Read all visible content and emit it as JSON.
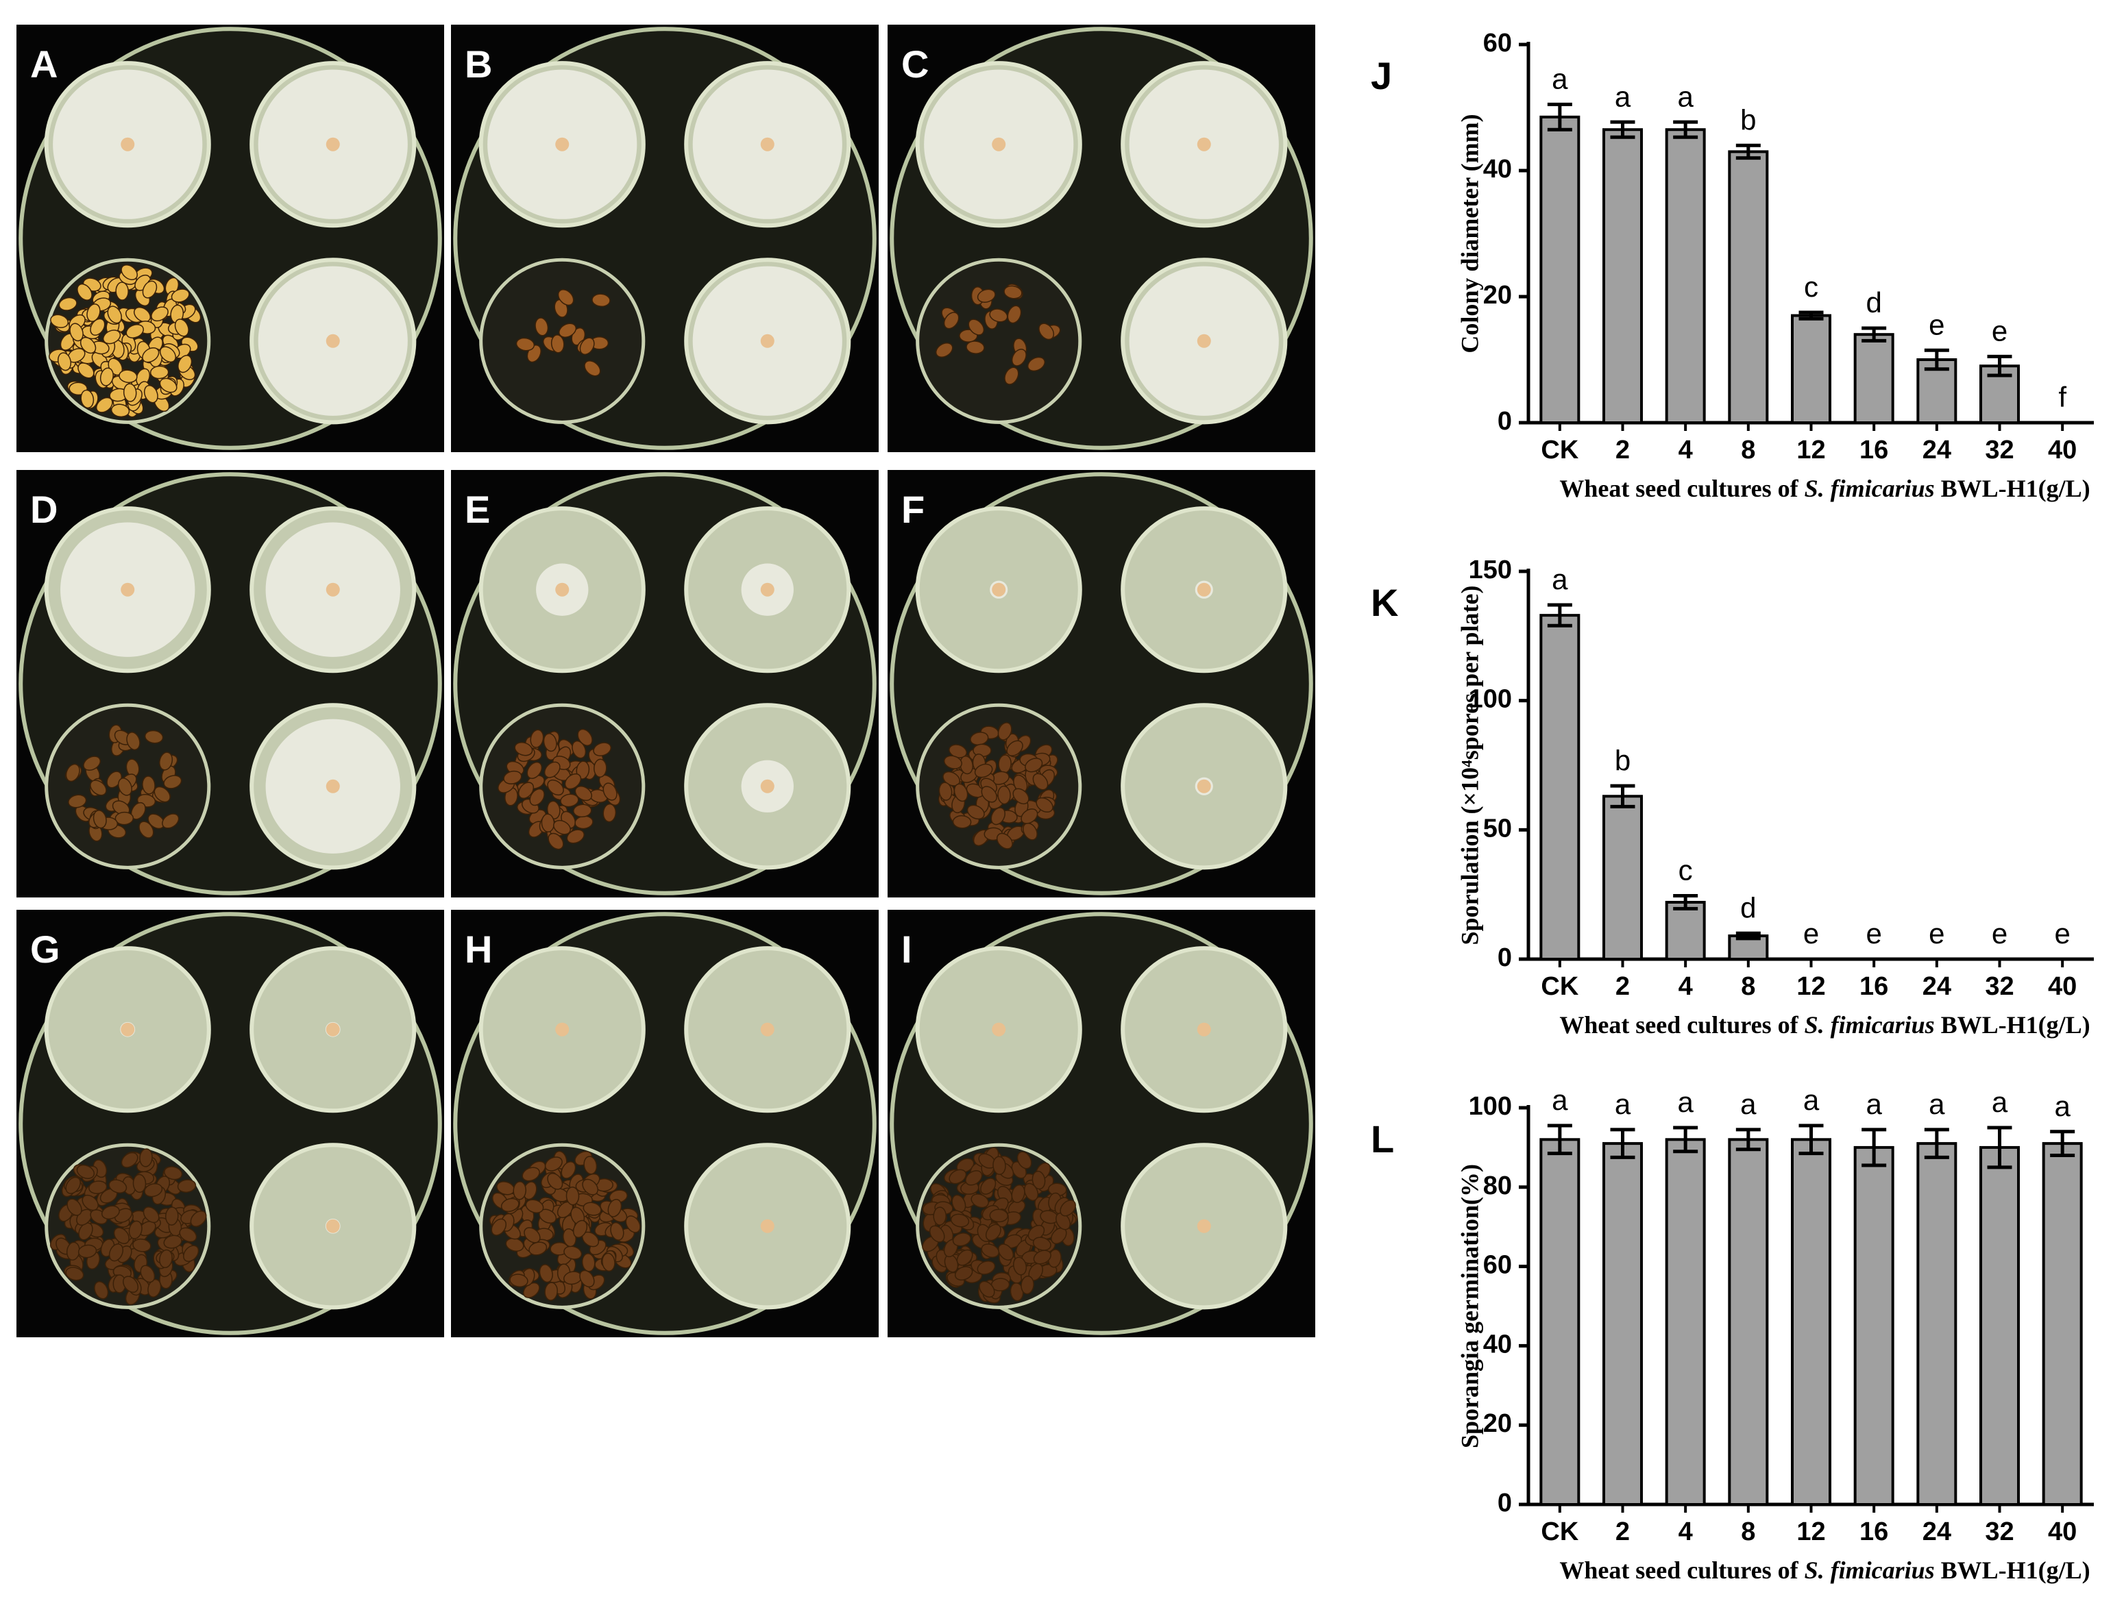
{
  "panels": {
    "labels": [
      "A",
      "B",
      "C",
      "D",
      "E",
      "F",
      "G",
      "H",
      "I"
    ]
  },
  "chart_data": [
    {
      "type": "bar",
      "panel_label": "J",
      "ylabel": "Colony diameter (mm)",
      "xlabel": [
        "Wheat seed cultures of ",
        "S. fimicarius",
        " BWL-H1(g/L)"
      ],
      "categories": [
        "CK",
        "2",
        "4",
        "8",
        "12",
        "16",
        "24",
        "32",
        "40"
      ],
      "values": [
        48.5,
        46.5,
        46.5,
        43,
        17,
        14,
        10,
        9,
        0
      ],
      "errors": [
        2,
        1.2,
        1.2,
        1,
        0.5,
        1,
        1.5,
        1.5,
        0
      ],
      "significance": [
        "a",
        "a",
        "a",
        "b",
        "c",
        "d",
        "e",
        "e",
        "f"
      ],
      "color": "#a0a0a0",
      "ylim": [
        0,
        60
      ],
      "yticks": [
        0,
        20,
        40,
        60
      ]
    },
    {
      "type": "bar",
      "panel_label": "K",
      "ylabel": "Sporulation (×10⁴spores per plate)",
      "xlabel": [
        "Wheat seed cultures of ",
        "S. fimicarius",
        " BWL-H1(g/L)"
      ],
      "categories": [
        "CK",
        "2",
        "4",
        "8",
        "12",
        "16",
        "24",
        "32",
        "40"
      ],
      "values": [
        133,
        63,
        22,
        9,
        0,
        0,
        0,
        0,
        0
      ],
      "errors": [
        4,
        4,
        2.5,
        1,
        0,
        0,
        0,
        0,
        0
      ],
      "significance": [
        "a",
        "b",
        "c",
        "d",
        "e",
        "e",
        "e",
        "e",
        "e"
      ],
      "color": "#a0a0a0",
      "ylim": [
        0,
        150
      ],
      "yticks": [
        0,
        50,
        100,
        150
      ]
    },
    {
      "type": "bar",
      "panel_label": "L",
      "ylabel": "Sporangia germination(%)",
      "xlabel": [
        "Wheat seed cultures of ",
        "S. fimicarius",
        " BWL-H1(g/L)"
      ],
      "categories": [
        "CK",
        "2",
        "4",
        "8",
        "12",
        "16",
        "24",
        "32",
        "40"
      ],
      "values": [
        92,
        91,
        92,
        92,
        92,
        90,
        91,
        90,
        91
      ],
      "errors": [
        3.5,
        3.5,
        3,
        2.5,
        3.5,
        4.5,
        3.5,
        5,
        3
      ],
      "significance": [
        "a",
        "a",
        "a",
        "a",
        "a",
        "a",
        "a",
        "a",
        "a"
      ],
      "color": "#a0a0a0",
      "ylim": [
        0,
        100
      ],
      "yticks": [
        0,
        20,
        40,
        60,
        80,
        100
      ]
    }
  ]
}
